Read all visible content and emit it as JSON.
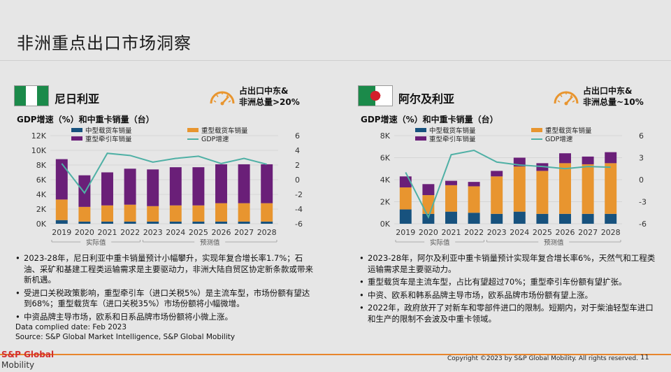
{
  "slide": {
    "title": "非洲重点出口市场洞察",
    "footer_note_date": "Data complied date: Feb 2023",
    "footer_note_source": "Source: S&P Global Market Intelligence, S&P Global Mobility",
    "logo_top": "S&P Global",
    "logo_bottom": "Mobility",
    "copyright": "Copyright ©2023 by S&P Global Mobility. All rights reserved.",
    "page_number": "11"
  },
  "colors": {
    "medium": "#17527e",
    "heavy": "#e8952f",
    "tractor": "#6a1f78",
    "gdp": "#4fb0a5"
  },
  "nigeria": {
    "name": "尼日利亚",
    "share_line1": "占出口中东&",
    "share_line2": "非洲总量>20%",
    "chart_title": "GDP增速（%）和中重卡销量（台）",
    "legend": {
      "medium": "中型载货车销量",
      "heavy": "重型载货车销量",
      "tractor": "重型牵引车销量",
      "gdp": "GDP增速"
    },
    "actual_label": "实际值",
    "forecast_label": "预测值",
    "bullets": [
      "2023-28年，尼日利亚中重卡销量预计小幅攀升，实现年复合增长率1.7%；石油、采矿和基建工程类运输需求是主要驱动力，非洲大陆自贸区协定新条款或带来新机遇。",
      "受进口关税政策影响，重型牵引车（进口关税5%）是主流车型，市场份额有望达到68%；重型载货车（进口关税35%）市场份额将小幅微增。",
      "中资品牌主导市场，欧系和日系品牌市场份额将小微上涨。"
    ]
  },
  "algeria": {
    "name": "阿尔及利亚",
    "share_line1": "占出口中东&",
    "share_line2": "非洲总量~10%",
    "chart_title": "GDP增速（%）和中重卡销量（台）",
    "legend": {
      "medium": "中型载货车销量",
      "heavy": "重型载货车销量",
      "tractor": "重型牵引车销量",
      "gdp": "GDP增速"
    },
    "actual_label": "实际值",
    "forecast_label": "预测值",
    "bullets": [
      "2023-28年，阿尔及利亚中重卡销量预计实现年复合增长率6%，天然气和工程类运输需求是主要驱动力。",
      "重型载货车是主流车型，占比有望超过70%；重型牵引车份额有望扩张。",
      "中资、欧系和韩系品牌主导市场，欧系品牌市场份额有望上涨。",
      "2022年，政府放开了对新车和零部件进口的限制。短期内，对于柴油轻型车进口和生产的限制不会波及中重卡领域。"
    ]
  },
  "chart_data": [
    {
      "type": "bar",
      "stacked": true,
      "title": "GDP增速（%）和中重卡销量（台）",
      "categories": [
        "2019",
        "2020",
        "2021",
        "2022",
        "2023",
        "2024",
        "2025",
        "2026",
        "2027",
        "2028"
      ],
      "series": [
        {
          "name": "中型载货车销量",
          "values": [
            500,
            300,
            300,
            300,
            300,
            300,
            300,
            300,
            300,
            300
          ]
        },
        {
          "name": "重型载货车销量",
          "values": [
            2800,
            2000,
            2200,
            2300,
            2100,
            2200,
            2200,
            2500,
            2500,
            2500
          ]
        },
        {
          "name": "重型牵引车销量",
          "values": [
            5500,
            4300,
            4500,
            4900,
            5000,
            5200,
            5200,
            5300,
            5300,
            5300
          ]
        }
      ],
      "line_series": {
        "name": "GDP增速",
        "axis": "right",
        "values": [
          2.2,
          -1.8,
          3.6,
          3.3,
          2.4,
          2.9,
          3.2,
          2.2,
          2.9,
          2.1
        ]
      },
      "y_ticks": [
        "0K",
        "2K",
        "4K",
        "6K",
        "8K",
        "10K",
        "12K"
      ],
      "ylim": [
        0,
        12000
      ],
      "y2_ticks": [
        "-6",
        "-4",
        "-2",
        "0",
        "2",
        "4",
        "6"
      ],
      "y2lim": [
        -6,
        6
      ],
      "actual_range": [
        "2019",
        "2022"
      ],
      "forecast_range": [
        "2023",
        "2028"
      ]
    },
    {
      "type": "bar",
      "stacked": true,
      "title": "GDP增速（%）和中重卡销量（台）",
      "categories": [
        "2019",
        "2020",
        "2021",
        "2022",
        "2023",
        "2024",
        "2025",
        "2026",
        "2027",
        "2028"
      ],
      "series": [
        {
          "name": "中型载货车销量",
          "values": [
            1300,
            900,
            1100,
            1000,
            900,
            1100,
            900,
            900,
            900,
            900
          ]
        },
        {
          "name": "重型载货车销量",
          "values": [
            2000,
            1700,
            2400,
            2400,
            3400,
            4100,
            3900,
            4600,
            4500,
            4600
          ]
        },
        {
          "name": "重型牵引车销量",
          "values": [
            1000,
            1000,
            400,
            400,
            500,
            800,
            700,
            900,
            700,
            1000
          ]
        }
      ],
      "line_series": {
        "name": "GDP增速",
        "axis": "right",
        "values": [
          1.0,
          -5.1,
          3.4,
          4.0,
          2.4,
          2.0,
          1.8,
          1.5,
          1.8,
          1.7
        ]
      },
      "y_ticks": [
        "0K",
        "2K",
        "4K",
        "6K",
        "8K"
      ],
      "ylim": [
        0,
        8000
      ],
      "y2_ticks": [
        "-6",
        "-3",
        "0",
        "3",
        "6"
      ],
      "y2lim": [
        -6,
        6
      ],
      "actual_range": [
        "2019",
        "2022"
      ],
      "forecast_range": [
        "2023",
        "2028"
      ]
    }
  ]
}
